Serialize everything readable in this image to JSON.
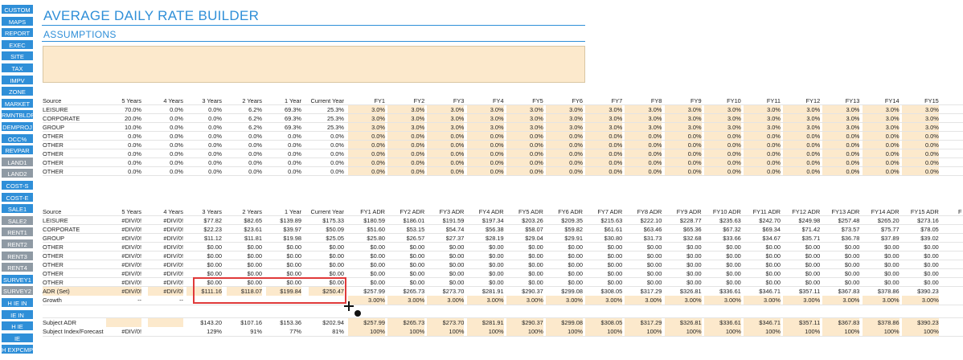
{
  "sidebar": {
    "items": [
      {
        "label": "CUSTOM",
        "color": "blue"
      },
      {
        "label": "MAPS",
        "color": "blue"
      },
      {
        "label": "REPORT",
        "color": "blue"
      },
      {
        "label": "EXEC",
        "color": "blue"
      },
      {
        "label": "SITE",
        "color": "blue"
      },
      {
        "label": "TAX",
        "color": "blue"
      },
      {
        "label": "IMPV",
        "color": "blue"
      },
      {
        "label": "ZONE",
        "color": "blue"
      },
      {
        "label": "MARKET",
        "color": "blue"
      },
      {
        "label": "RMNTBLDR",
        "color": "blue"
      },
      {
        "label": "DEMPROJ",
        "color": "blue"
      },
      {
        "label": "OCC%",
        "color": "blue"
      },
      {
        "label": "REVPAR",
        "color": "blue"
      },
      {
        "label": "LAND1",
        "color": "gray"
      },
      {
        "label": "LAND2",
        "color": "gray"
      },
      {
        "label": "COST-S",
        "color": "blue"
      },
      {
        "label": "COST-E",
        "color": "blue"
      },
      {
        "label": "SALE1",
        "color": "blue"
      },
      {
        "label": "SALE2",
        "color": "gray"
      },
      {
        "label": "RENT1",
        "color": "gray"
      },
      {
        "label": "RENT2",
        "color": "gray"
      },
      {
        "label": "RENT3",
        "color": "gray"
      },
      {
        "label": "RENT4",
        "color": "gray"
      },
      {
        "label": "SURVEY1",
        "color": "blue"
      },
      {
        "label": "SURVEY2",
        "color": "gray"
      },
      {
        "label": "H IE IN",
        "color": "blue"
      },
      {
        "label": "IE IN",
        "color": "blue"
      },
      {
        "label": "H IE",
        "color": "blue"
      },
      {
        "label": "IE",
        "color": "blue"
      },
      {
        "label": "H EXPCMP",
        "color": "blue"
      }
    ]
  },
  "colors": {
    "accent": "#2f8fd8",
    "nav_gray": "#8f9aa4",
    "input_fill": "#fce9cc",
    "highlight_border": "#e03a3a"
  },
  "header": {
    "title": "AVERAGE DAILY RATE BUILDER",
    "subtitle": "ASSUMPTIONS"
  },
  "mix_table": {
    "columns": [
      "Source",
      "5 Years",
      "4 Years",
      "3 Years",
      "2 Years",
      "1 Year",
      "Current Year",
      "FY1",
      "FY2",
      "FY3",
      "FY4",
      "FY5",
      "FY6",
      "FY7",
      "FY8",
      "FY9",
      "FY10",
      "FY11",
      "FY12",
      "FY13",
      "FY14",
      "FY15"
    ],
    "rows": [
      [
        "LEISURE",
        "70.0%",
        "0.0%",
        "0.0%",
        "6.2%",
        "69.3%",
        "25.3%",
        "3.0%",
        "3.0%",
        "3.0%",
        "3.0%",
        "3.0%",
        "3.0%",
        "3.0%",
        "3.0%",
        "3.0%",
        "3.0%",
        "3.0%",
        "3.0%",
        "3.0%",
        "3.0%",
        "3.0%"
      ],
      [
        "CORPORATE",
        "20.0%",
        "0.0%",
        "0.0%",
        "6.2%",
        "69.3%",
        "25.3%",
        "3.0%",
        "3.0%",
        "3.0%",
        "3.0%",
        "3.0%",
        "3.0%",
        "3.0%",
        "3.0%",
        "3.0%",
        "3.0%",
        "3.0%",
        "3.0%",
        "3.0%",
        "3.0%",
        "3.0%"
      ],
      [
        "GROUP",
        "10.0%",
        "0.0%",
        "0.0%",
        "6.2%",
        "69.3%",
        "25.3%",
        "3.0%",
        "3.0%",
        "3.0%",
        "3.0%",
        "3.0%",
        "3.0%",
        "3.0%",
        "3.0%",
        "3.0%",
        "3.0%",
        "3.0%",
        "3.0%",
        "3.0%",
        "3.0%",
        "3.0%"
      ],
      [
        "OTHER",
        "0.0%",
        "0.0%",
        "0.0%",
        "0.0%",
        "0.0%",
        "0.0%",
        "0.0%",
        "0.0%",
        "0.0%",
        "0.0%",
        "0.0%",
        "0.0%",
        "0.0%",
        "0.0%",
        "0.0%",
        "0.0%",
        "0.0%",
        "0.0%",
        "0.0%",
        "0.0%",
        "0.0%"
      ],
      [
        "OTHER",
        "0.0%",
        "0.0%",
        "0.0%",
        "0.0%",
        "0.0%",
        "0.0%",
        "0.0%",
        "0.0%",
        "0.0%",
        "0.0%",
        "0.0%",
        "0.0%",
        "0.0%",
        "0.0%",
        "0.0%",
        "0.0%",
        "0.0%",
        "0.0%",
        "0.0%",
        "0.0%",
        "0.0%"
      ],
      [
        "OTHER",
        "0.0%",
        "0.0%",
        "0.0%",
        "0.0%",
        "0.0%",
        "0.0%",
        "0.0%",
        "0.0%",
        "0.0%",
        "0.0%",
        "0.0%",
        "0.0%",
        "0.0%",
        "0.0%",
        "0.0%",
        "0.0%",
        "0.0%",
        "0.0%",
        "0.0%",
        "0.0%",
        "0.0%"
      ],
      [
        "OTHER",
        "0.0%",
        "0.0%",
        "0.0%",
        "0.0%",
        "0.0%",
        "0.0%",
        "0.0%",
        "0.0%",
        "0.0%",
        "0.0%",
        "0.0%",
        "0.0%",
        "0.0%",
        "0.0%",
        "0.0%",
        "0.0%",
        "0.0%",
        "0.0%",
        "0.0%",
        "0.0%",
        "0.0%"
      ],
      [
        "OTHER",
        "0.0%",
        "0.0%",
        "0.0%",
        "0.0%",
        "0.0%",
        "0.0%",
        "0.0%",
        "0.0%",
        "0.0%",
        "0.0%",
        "0.0%",
        "0.0%",
        "0.0%",
        "0.0%",
        "0.0%",
        "0.0%",
        "0.0%",
        "0.0%",
        "0.0%",
        "0.0%",
        "0.0%"
      ]
    ]
  },
  "adr_table": {
    "columns": [
      "Source",
      "5 Years",
      "4 Years",
      "3 Years",
      "2 Years",
      "1 Year",
      "Current Year",
      "FY1 ADR",
      "FY2 ADR",
      "FY3 ADR",
      "FY4 ADR",
      "FY5 ADR",
      "FY6 ADR",
      "FY7 ADR",
      "FY8 ADR",
      "FY9 ADR",
      "FY10 ADR",
      "FY11 ADR",
      "FY12 ADR",
      "FY13 ADR",
      "FY14 ADR",
      "FY15 ADR",
      "F"
    ],
    "rows": [
      [
        "LEISURE",
        "#DIV/0!",
        "#DIV/0!",
        "$77.82",
        "$82.65",
        "$139.89",
        "$175.33",
        "$180.59",
        "$186.01",
        "$191.59",
        "$197.34",
        "$203.26",
        "$209.35",
        "$215.63",
        "$222.10",
        "$228.77",
        "$235.63",
        "$242.70",
        "$249.98",
        "$257.48",
        "$265.20",
        "$273.16"
      ],
      [
        "CORPORATE",
        "#DIV/0!",
        "#DIV/0!",
        "$22.23",
        "$23.61",
        "$39.97",
        "$50.09",
        "$51.60",
        "$53.15",
        "$54.74",
        "$56.38",
        "$58.07",
        "$59.82",
        "$61.61",
        "$63.46",
        "$65.36",
        "$67.32",
        "$69.34",
        "$71.42",
        "$73.57",
        "$75.77",
        "$78.05"
      ],
      [
        "GROUP",
        "#DIV/0!",
        "#DIV/0!",
        "$11.12",
        "$11.81",
        "$19.98",
        "$25.05",
        "$25.80",
        "$26.57",
        "$27.37",
        "$28.19",
        "$29.04",
        "$29.91",
        "$30.80",
        "$31.73",
        "$32.68",
        "$33.66",
        "$34.67",
        "$35.71",
        "$36.78",
        "$37.89",
        "$39.02"
      ],
      [
        "OTHER",
        "#DIV/0!",
        "#DIV/0!",
        "$0.00",
        "$0.00",
        "$0.00",
        "$0.00",
        "$0.00",
        "$0.00",
        "$0.00",
        "$0.00",
        "$0.00",
        "$0.00",
        "$0.00",
        "$0.00",
        "$0.00",
        "$0.00",
        "$0.00",
        "$0.00",
        "$0.00",
        "$0.00",
        "$0.00"
      ],
      [
        "OTHER",
        "#DIV/0!",
        "#DIV/0!",
        "$0.00",
        "$0.00",
        "$0.00",
        "$0.00",
        "$0.00",
        "$0.00",
        "$0.00",
        "$0.00",
        "$0.00",
        "$0.00",
        "$0.00",
        "$0.00",
        "$0.00",
        "$0.00",
        "$0.00",
        "$0.00",
        "$0.00",
        "$0.00",
        "$0.00"
      ],
      [
        "OTHER",
        "#DIV/0!",
        "#DIV/0!",
        "$0.00",
        "$0.00",
        "$0.00",
        "$0.00",
        "$0.00",
        "$0.00",
        "$0.00",
        "$0.00",
        "$0.00",
        "$0.00",
        "$0.00",
        "$0.00",
        "$0.00",
        "$0.00",
        "$0.00",
        "$0.00",
        "$0.00",
        "$0.00",
        "$0.00"
      ],
      [
        "OTHER",
        "#DIV/0!",
        "#DIV/0!",
        "$0.00",
        "$0.00",
        "$0.00",
        "$0.00",
        "$0.00",
        "$0.00",
        "$0.00",
        "$0.00",
        "$0.00",
        "$0.00",
        "$0.00",
        "$0.00",
        "$0.00",
        "$0.00",
        "$0.00",
        "$0.00",
        "$0.00",
        "$0.00",
        "$0.00"
      ],
      [
        "OTHER",
        "#DIV/0!",
        "#DIV/0!",
        "$0.00",
        "$0.00",
        "$0.00",
        "$0.00",
        "$0.00",
        "$0.00",
        "$0.00",
        "$0.00",
        "$0.00",
        "$0.00",
        "$0.00",
        "$0.00",
        "$0.00",
        "$0.00",
        "$0.00",
        "$0.00",
        "$0.00",
        "$0.00",
        "$0.00"
      ]
    ],
    "total_row": [
      "ADR (Set)",
      "#DIV/0!",
      "#DIV/0!",
      "$111.16",
      "$118.07",
      "$199.84",
      "$250.47",
      "$257.99",
      "$265.73",
      "$273.70",
      "$281.91",
      "$290.37",
      "$299.08",
      "$308.05",
      "$317.29",
      "$326.81",
      "$336.61",
      "$346.71",
      "$357.11",
      "$367.83",
      "$378.86",
      "$390.23"
    ],
    "growth_row": [
      "Growth",
      "--",
      "--",
      "",
      "",
      "",
      "",
      "3.00%",
      "3.00%",
      "3.00%",
      "3.00%",
      "3.00%",
      "3.00%",
      "3.00%",
      "3.00%",
      "3.00%",
      "3.00%",
      "3.00%",
      "3.00%",
      "3.00%",
      "3.00%",
      "3.00%"
    ],
    "subject_rows": [
      [
        "Subject ADR",
        "",
        "",
        "$143.20",
        "$107.16",
        "$153.36",
        "$202.94",
        "$257.99",
        "$265.73",
        "$273.70",
        "$281.91",
        "$290.37",
        "$299.08",
        "$308.05",
        "$317.29",
        "$326.81",
        "$336.61",
        "$346.71",
        "$357.11",
        "$367.83",
        "$378.86",
        "$390.23"
      ],
      [
        "Subject Index/Forecast",
        "#DIV/0!",
        "",
        "129%",
        "91%",
        "77%",
        "81%",
        "100%",
        "100%",
        "100%",
        "100%",
        "100%",
        "100%",
        "100%",
        "100%",
        "100%",
        "100%",
        "100%",
        "100%",
        "100%",
        "100%",
        "100%"
      ]
    ]
  },
  "cursor": "excel-cross-cursor"
}
